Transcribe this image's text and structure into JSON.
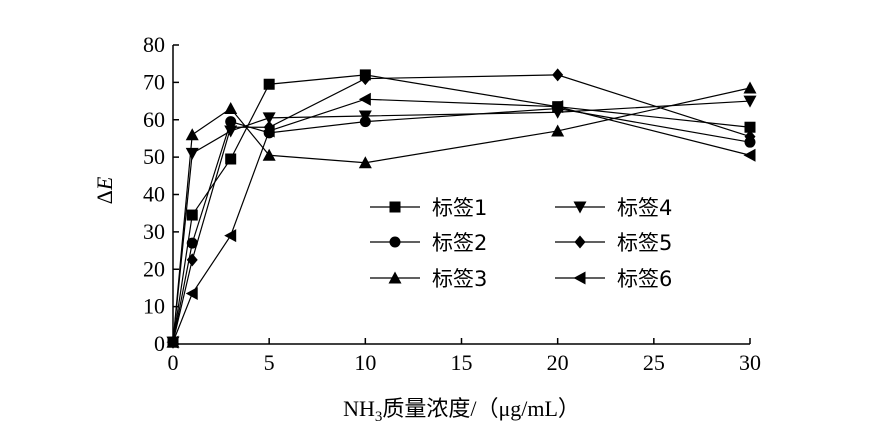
{
  "chart_data": {
    "type": "line",
    "xlabel": {
      "main": "NH",
      "sub": "3",
      "rest": "质量浓度/（μg/mL）"
    },
    "ylabel": {
      "delta": "Δ",
      "var": "E"
    },
    "xlim": [
      0,
      30
    ],
    "ylim": [
      0,
      80
    ],
    "x_ticks": [
      "0",
      "5",
      "10",
      "15",
      "20",
      "25",
      "30"
    ],
    "y_ticks": [
      "0",
      "10",
      "20",
      "30",
      "40",
      "50",
      "60",
      "70",
      "80"
    ],
    "x": [
      0,
      1,
      3,
      5,
      10,
      20,
      30
    ],
    "grid": false,
    "legend_position": "lower-right",
    "series": [
      {
        "name": "标签1",
        "marker": "square",
        "values": [
          0.5,
          34.5,
          49.5,
          69.5,
          72,
          63.5,
          58
        ]
      },
      {
        "name": "标签2",
        "marker": "circle",
        "values": [
          0.5,
          27,
          59.5,
          56.5,
          59.5,
          63,
          54
        ]
      },
      {
        "name": "标签3",
        "marker": "triangle-up",
        "values": [
          0.5,
          56,
          63,
          50.5,
          48.5,
          57,
          68.5
        ]
      },
      {
        "name": "标签4",
        "marker": "triangle-down",
        "values": [
          0.5,
          51,
          57,
          60.5,
          61,
          62,
          65
        ]
      },
      {
        "name": "标签5",
        "marker": "diamond",
        "values": [
          0.5,
          22.5,
          58,
          58,
          71,
          72,
          55.5
        ]
      },
      {
        "name": "标签6",
        "marker": "triangle-left",
        "values": [
          0.5,
          13.5,
          29,
          57,
          65.5,
          63.5,
          50.5
        ]
      }
    ]
  }
}
